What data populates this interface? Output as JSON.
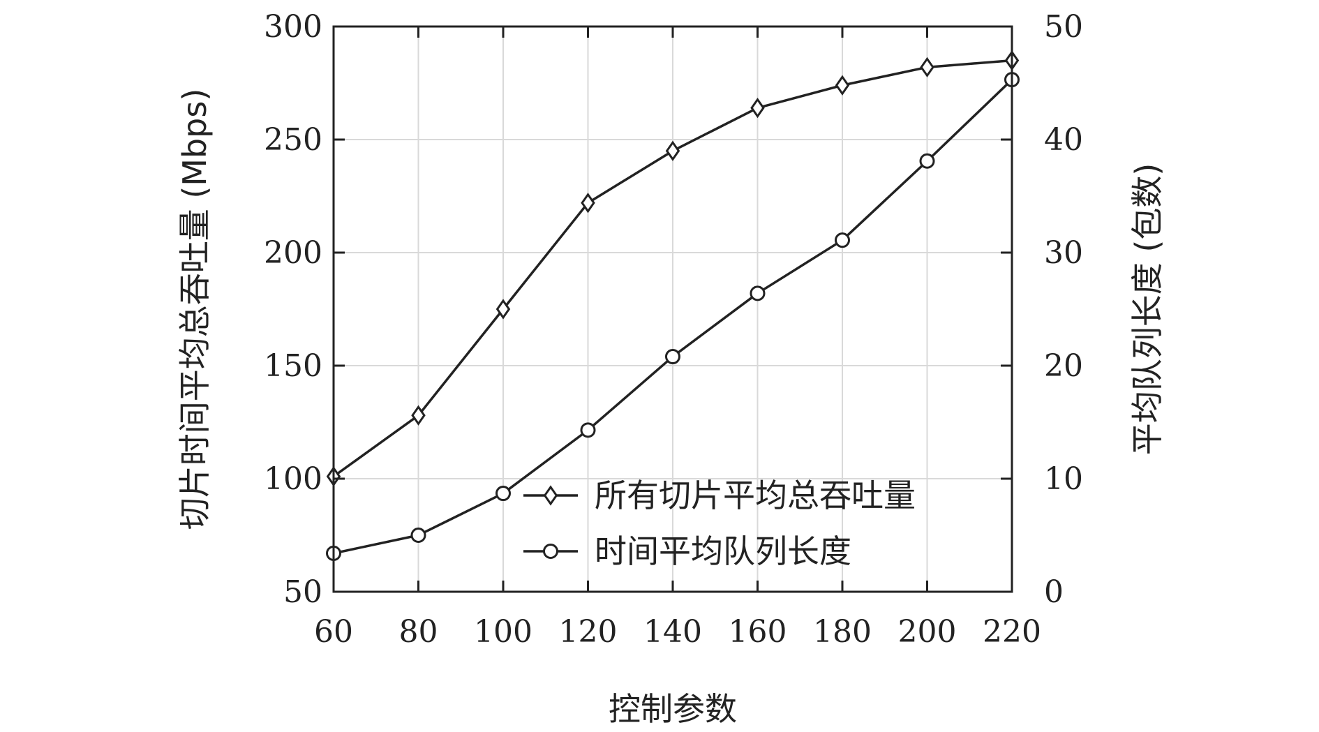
{
  "chart_data": {
    "type": "line",
    "title": "",
    "xlabel": "控制参数",
    "ylabel_left": "切片时间平均总吞吐量 (Mbps)",
    "ylabel_right": "平均队列长度 (包数)",
    "x": [
      60,
      80,
      100,
      120,
      140,
      160,
      180,
      200,
      220
    ],
    "xlim": [
      60,
      220
    ],
    "xticks": [
      "60",
      "80",
      "100",
      "120",
      "140",
      "160",
      "180",
      "200",
      "220"
    ],
    "ylim_left": [
      50,
      300
    ],
    "yticks_left": [
      "50",
      "100",
      "150",
      "200",
      "250",
      "300"
    ],
    "ylim_right": [
      0,
      50
    ],
    "yticks_right": [
      "0",
      "10",
      "20",
      "30",
      "40",
      "50"
    ],
    "grid": true,
    "legend_position": "lower-right",
    "series": [
      {
        "name": "所有切片平均总吞吐量",
        "axis": "left",
        "marker": "diamond",
        "values": [
          101,
          128,
          175,
          222,
          245,
          264,
          274,
          282,
          285
        ]
      },
      {
        "name": "时间平均队列长度",
        "axis": "right",
        "marker": "circle",
        "values": [
          3.4,
          5.0,
          8.7,
          14.3,
          20.8,
          26.4,
          31.1,
          38.1,
          45.3
        ]
      }
    ],
    "colors": {
      "line": "#222222",
      "grid": "#d9d9d9",
      "axis": "#222222"
    }
  }
}
